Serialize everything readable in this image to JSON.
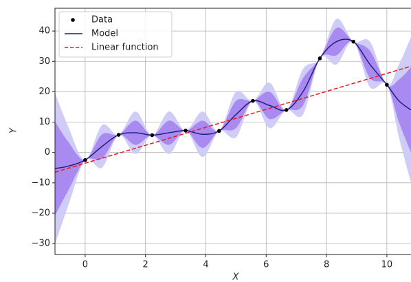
{
  "chart_data": {
    "type": "line",
    "xlabel": "X",
    "ylabel": "Y",
    "xlim": [
      -1,
      10.8
    ],
    "ylim": [
      -33.6,
      47.5
    ],
    "xticks": [
      0,
      2,
      4,
      6,
      8,
      10
    ],
    "yticks": [
      {
        "value": -30,
        "label": "−30"
      },
      {
        "value": -20,
        "label": "−20"
      },
      {
        "value": -10,
        "label": "−10"
      },
      0,
      10,
      20,
      30,
      40
    ],
    "grid": true,
    "legend": "upper-left",
    "x": [
      -1,
      -0.56,
      0,
      0.56,
      1.11,
      1.67,
      2.22,
      2.78,
      3.33,
      3.89,
      4.44,
      5,
      5.56,
      6.11,
      6.67,
      7.22,
      7.78,
      8.33,
      8.89,
      9.44,
      10,
      10.4,
      10.8
    ],
    "bands": [
      {
        "color": "#cfcdf7",
        "lower": [
          -30.3,
          -17.5,
          -2.5,
          -5,
          5.8,
          -0.5,
          5.7,
          -0.5,
          7.2,
          -1.5,
          7.1,
          5,
          17,
          8,
          14,
          12.5,
          31,
          29,
          36.5,
          21.5,
          22.3,
          5,
          -10
        ],
        "upper": [
          19.7,
          8.5,
          -2.5,
          9,
          5.8,
          13.5,
          5.7,
          13.5,
          7.2,
          13.5,
          7.1,
          20,
          17,
          23,
          14,
          27.5,
          31,
          44,
          36.5,
          36.5,
          22.3,
          29,
          38
        ]
      },
      {
        "color": "#a98af0",
        "lower": [
          -20.8,
          -12.5,
          -2.5,
          -2,
          5.8,
          2.5,
          5.7,
          2.5,
          7.2,
          1.5,
          7.1,
          8,
          17,
          11,
          14,
          15.5,
          31,
          32,
          36.5,
          24.5,
          22.3,
          10,
          0
        ],
        "upper": [
          10.2,
          3.5,
          -2.5,
          6,
          5.8,
          10.5,
          5.7,
          10.5,
          7.2,
          10.5,
          7.1,
          17,
          17,
          20,
          14,
          24.5,
          31,
          41,
          36.5,
          33.5,
          22.3,
          24,
          28
        ]
      }
    ],
    "series": [
      {
        "name": "Data",
        "type": "scatter",
        "color": "#000000",
        "x": [
          0,
          1.11,
          2.22,
          3.33,
          4.44,
          5.56,
          6.67,
          7.78,
          8.89,
          10
        ],
        "values": [
          -2.5,
          5.8,
          5.7,
          7.2,
          7.1,
          17,
          14,
          31,
          36.5,
          22.3
        ]
      },
      {
        "name": "Model",
        "type": "line",
        "color": "#1f1f7a",
        "values": [
          -5.3,
          -4.5,
          -2.5,
          2,
          5.8,
          6.5,
          5.7,
          6.5,
          7.2,
          6.0,
          7.1,
          12.5,
          17,
          15.5,
          14,
          20,
          31,
          36.5,
          36.5,
          29,
          22.3,
          17,
          14
        ]
      },
      {
        "name": "Linear function",
        "type": "line",
        "color": "#e8191c",
        "linestyle": "dashed",
        "x": [
          -1,
          10.8
        ],
        "values": [
          -6.5,
          28.4
        ]
      }
    ]
  }
}
